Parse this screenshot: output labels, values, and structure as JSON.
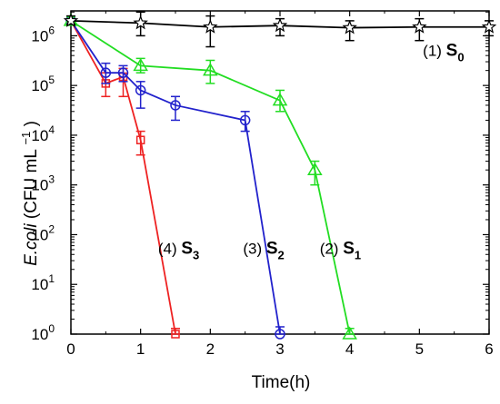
{
  "chart_data": {
    "type": "line",
    "xlabel": "Time(h)",
    "ylabel": {
      "italic": "E.coli",
      "plain": "(CFU mL",
      "sup": "−1",
      "close": ")"
    },
    "xlim": [
      0,
      6
    ],
    "ylim_log10": [
      0,
      6.5
    ],
    "y_scale": "log",
    "x_ticks": [
      "0",
      "1",
      "2",
      "3",
      "4",
      "5",
      "6"
    ],
    "y_ticks": [
      {
        "base": "10",
        "exp": "0"
      },
      {
        "base": "10",
        "exp": "1"
      },
      {
        "base": "10",
        "exp": "2"
      },
      {
        "base": "10",
        "exp": "3"
      },
      {
        "base": "10",
        "exp": "4"
      },
      {
        "base": "10",
        "exp": "5"
      },
      {
        "base": "10",
        "exp": "6"
      }
    ],
    "grid": false,
    "legend": "none",
    "series": [
      {
        "id": "s0",
        "color": "#000000",
        "marker": "star",
        "label": {
          "num": "(1)",
          "s": "S",
          "sub": "0"
        },
        "points": [
          {
            "x": 0,
            "y": 2000000,
            "lo": 1700000,
            "hi": 2500000
          },
          {
            "x": 1,
            "y": 1800000,
            "lo": 1000000,
            "hi": 3000000
          },
          {
            "x": 2,
            "y": 1500000,
            "lo": 600000,
            "hi": 2500000
          },
          {
            "x": 3,
            "y": 1600000,
            "lo": 1000000,
            "hi": 2200000
          },
          {
            "x": 4,
            "y": 1450000,
            "lo": 800000,
            "hi": 2000000
          },
          {
            "x": 5,
            "y": 1500000,
            "lo": 800000,
            "hi": 2200000
          },
          {
            "x": 6,
            "y": 1500000,
            "lo": 1000000,
            "hi": 2000000
          }
        ]
      },
      {
        "id": "s1",
        "color": "#22dd22",
        "marker": "triangle",
        "label": {
          "num": "(2)",
          "s": "S",
          "sub": "1"
        },
        "points": [
          {
            "x": 0,
            "y": 2000000,
            "lo": 1700000,
            "hi": 2400000
          },
          {
            "x": 1,
            "y": 250000,
            "lo": 180000,
            "hi": 350000
          },
          {
            "x": 2,
            "y": 200000,
            "lo": 110000,
            "hi": 320000
          },
          {
            "x": 3,
            "y": 50000,
            "lo": 30000,
            "hi": 80000
          },
          {
            "x": 3.5,
            "y": 2000,
            "lo": 1000,
            "hi": 3000
          },
          {
            "x": 4,
            "y": 1,
            "lo": 1,
            "hi": 1.3
          }
        ]
      },
      {
        "id": "s2",
        "color": "#2222cc",
        "marker": "circle",
        "label": {
          "num": "(3)",
          "s": "S",
          "sub": "2"
        },
        "points": [
          {
            "x": 0,
            "y": 2000000,
            "lo": 1700000,
            "hi": 2400000
          },
          {
            "x": 0.5,
            "y": 180000,
            "lo": 110000,
            "hi": 280000
          },
          {
            "x": 0.75,
            "y": 180000,
            "lo": 120000,
            "hi": 250000
          },
          {
            "x": 1,
            "y": 80000,
            "lo": 35000,
            "hi": 120000
          },
          {
            "x": 1.5,
            "y": 40000,
            "lo": 20000,
            "hi": 60000
          },
          {
            "x": 2.5,
            "y": 20000,
            "lo": 12000,
            "hi": 30000
          },
          {
            "x": 3,
            "y": 1,
            "lo": 1,
            "hi": 1.4
          }
        ]
      },
      {
        "id": "s3",
        "color": "#ee2222",
        "marker": "square",
        "label": {
          "num": "(4)",
          "s": "S",
          "sub": "3"
        },
        "points": [
          {
            "x": 0,
            "y": 2000000,
            "lo": 1700000,
            "hi": 2400000
          },
          {
            "x": 0.5,
            "y": 110000,
            "lo": 60000,
            "hi": 180000
          },
          {
            "x": 0.75,
            "y": 150000,
            "lo": 60000,
            "hi": 220000
          },
          {
            "x": 1,
            "y": 8000,
            "lo": 4000,
            "hi": 12000
          },
          {
            "x": 1.5,
            "y": 1,
            "lo": 1,
            "hi": 1.3
          }
        ]
      }
    ],
    "annotations": [
      {
        "series": "s0",
        "x": 5.05,
        "log_y": 5.6
      },
      {
        "series": "s1",
        "x": 3.57,
        "log_y": 1.62
      },
      {
        "series": "s2",
        "x": 2.47,
        "log_y": 1.62
      },
      {
        "series": "s3",
        "x": 1.25,
        "log_y": 1.62
      }
    ]
  }
}
